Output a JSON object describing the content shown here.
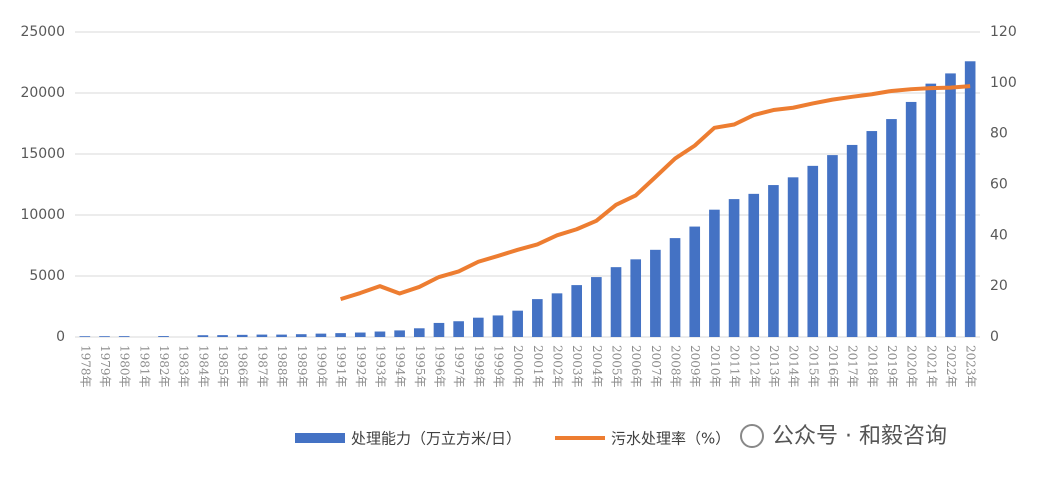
{
  "chart_data": {
    "type": "bar_line",
    "categories": [
      "1978年",
      "1979年",
      "1980年",
      "1981年",
      "1982年",
      "1983年",
      "1984年",
      "1985年",
      "1986年",
      "1987年",
      "1988年",
      "1989年",
      "1990年",
      "1991年",
      "1992年",
      "1993年",
      "1994年",
      "1995年",
      "1996年",
      "1997年",
      "1998年",
      "1999年",
      "2000年",
      "2001年",
      "2002年",
      "2003年",
      "2004年",
      "2005年",
      "2006年",
      "2007年",
      "2008年",
      "2009年",
      "2010年",
      "2011年",
      "2012年",
      "2013年",
      "2014年",
      "2015年",
      "2016年",
      "2017年",
      "2018年",
      "2019年",
      "2020年",
      "2021年",
      "2022年",
      "2023年"
    ],
    "series": [
      {
        "name": "处理能力（万立方米/日）",
        "type": "bar",
        "color": "#4472c4",
        "values": [
          64,
          66,
          70,
          0,
          76,
          0,
          146,
          154,
          177,
          198,
          197,
          230,
          277,
          317,
          366,
          449,
          540,
          714,
          1153,
          1292,
          1583,
          1767,
          2158,
          3106,
          3578,
          4254,
          4912,
          5725,
          6366,
          7146,
          8106,
          9052,
          10436,
          11303,
          11733,
          12454,
          13088,
          14028,
          14910,
          15743,
          16881,
          17863,
          19267,
          20767,
          21606,
          22600
        ]
      },
      {
        "name": "污水处理率（%）",
        "type": "line",
        "axis": "y2",
        "color": "#ed7d31",
        "values": [
          null,
          null,
          null,
          null,
          null,
          null,
          null,
          null,
          null,
          null,
          null,
          null,
          null,
          14.9,
          17.3,
          20.0,
          17.1,
          19.7,
          23.6,
          25.8,
          29.6,
          31.9,
          34.3,
          36.4,
          40.0,
          42.4,
          45.7,
          52.0,
          55.7,
          62.9,
          70.2,
          75.3,
          82.3,
          83.6,
          87.3,
          89.3,
          90.2,
          91.9,
          93.4,
          94.5,
          95.5,
          96.8,
          97.5,
          97.9,
          98.1,
          98.7
        ]
      }
    ],
    "ylim": [
      0,
      25000
    ],
    "yticks": [
      0,
      5000,
      10000,
      15000,
      20000,
      25000
    ],
    "y2lim": [
      0,
      120
    ],
    "y2ticks": [
      0,
      20,
      40,
      60,
      80,
      100,
      120
    ],
    "grid": true,
    "watermark": "公众号 · 和毅咨询"
  }
}
